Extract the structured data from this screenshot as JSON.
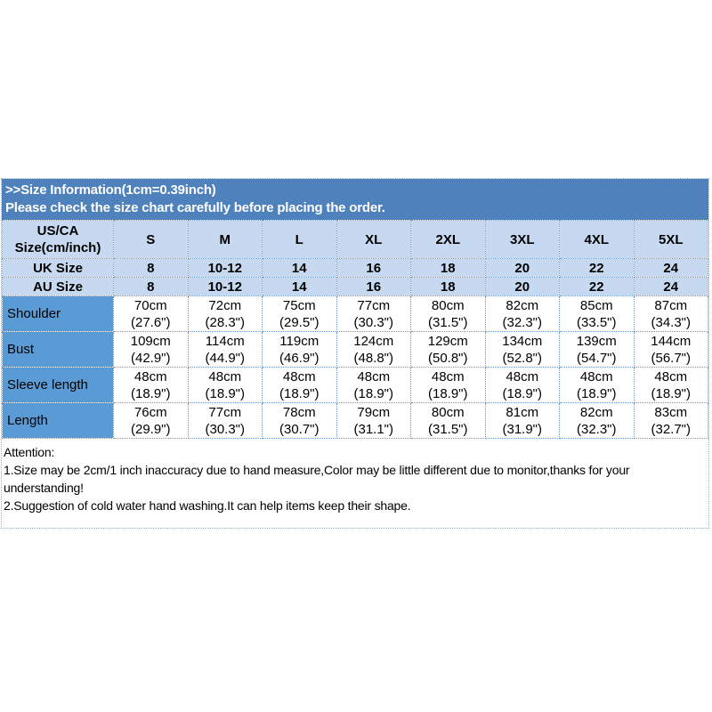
{
  "banner": {
    "line1": ">>Size Information(1cm=0.39inch)",
    "line2": "Please check the size chart carefully before placing the order."
  },
  "table": {
    "corner": {
      "line1": "US/CA",
      "line2": "Size(cm/inch)"
    },
    "size_columns": [
      "S",
      "M",
      "L",
      "XL",
      "2XL",
      "3XL",
      "4XL",
      "5XL"
    ],
    "size_rows": [
      {
        "label": "UK Size",
        "values": [
          "8",
          "10-12",
          "14",
          "16",
          "18",
          "20",
          "22",
          "24"
        ]
      },
      {
        "label": "AU Size",
        "values": [
          "8",
          "10-12",
          "14",
          "16",
          "18",
          "20",
          "22",
          "24"
        ]
      }
    ],
    "measure_rows": [
      {
        "label": "Shoulder",
        "values": [
          "70cm\n(27.6\")",
          "72cm\n(28.3\")",
          "75cm\n(29.5\")",
          "77cm\n(30.3\")",
          "80cm\n(31.5\")",
          "82cm\n(32.3\")",
          "85cm\n(33.5\")",
          "87cm\n(34.3\")"
        ]
      },
      {
        "label": "Bust",
        "values": [
          "109cm\n(42.9\")",
          "114cm\n(44.9\")",
          "119cm\n(46.9\")",
          "124cm\n(48.8\")",
          "129cm\n(50.8\")",
          "134cm\n(52.8\")",
          "139cm\n(54.7\")",
          "144cm\n(56.7\")"
        ]
      },
      {
        "label": "Sleeve length",
        "values": [
          "48cm\n(18.9\")",
          "48cm\n(18.9\")",
          "48cm\n(18.9\")",
          "48cm\n(18.9\")",
          "48cm\n(18.9\")",
          "48cm\n(18.9\")",
          "48cm\n(18.9\")",
          "48cm\n(18.9\")"
        ]
      },
      {
        "label": "Length",
        "values": [
          "76cm\n(29.9\")",
          "77cm\n(30.3\")",
          "78cm\n(30.7\")",
          "79cm\n(31.1\")",
          "80cm\n(31.5\")",
          "81cm\n(31.9\")",
          "82cm\n(32.3\")",
          "83cm\n(32.7\")"
        ]
      }
    ]
  },
  "attention": {
    "title": "Attention:",
    "notes": [
      "1.Size may be 2cm/1 inch inaccuracy due to hand measure,Color may be little different due to monitor,thanks for your understanding!",
      "2.Suggestion of cold water hand washing.It can help items keep their shape."
    ]
  },
  "colors": {
    "banner_bg": "#4f81bd",
    "header_bg": "#c6d9f0",
    "label_bg": "#5b9bd5",
    "grid_dotted": "#6f99c7",
    "banner_text": "#ffffff",
    "body_text": "#000000"
  }
}
